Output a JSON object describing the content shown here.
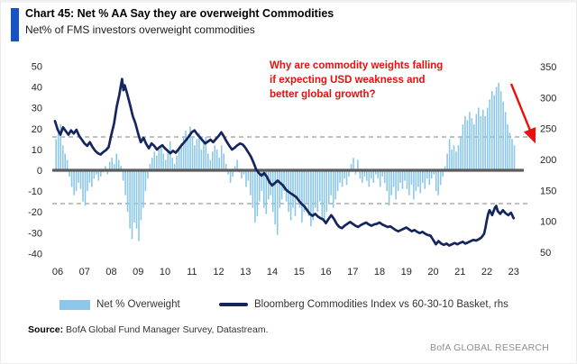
{
  "header": {
    "accent_color": "#1552C4"
  },
  "chart_data": {
    "type": "bar+line",
    "title": "Chart 45: Net % AA Say they are overweight Commodities",
    "subtitle": "Net% of FMS investors overweight commodities",
    "annotation": {
      "text": "Why are commodity weights falling\nif expecting USD weakness and\nbetter global growth?",
      "color": "#E8100C"
    },
    "legend": [
      {
        "label": "Net % Overweight",
        "color": "#8CC7E9",
        "type": "bar"
      },
      {
        "label": "Bloomberg Commodities Index vs 60-30-10 Basket, rhs",
        "color": "#15265E",
        "type": "line"
      }
    ],
    "left_axis": {
      "ticks": [
        50,
        40,
        30,
        20,
        10,
        0,
        -10,
        -20,
        -30,
        -40
      ],
      "range": [
        -40,
        50
      ]
    },
    "right_axis": {
      "ticks": [
        350,
        300,
        250,
        200,
        150,
        100,
        50
      ],
      "range": [
        50,
        350
      ]
    },
    "x_ticks": [
      "06",
      "07",
      "08",
      "09",
      "10",
      "11",
      "12",
      "13",
      "14",
      "15",
      "16",
      "17",
      "18",
      "19",
      "20",
      "21",
      "22",
      "23"
    ],
    "dashed_lines_left": [
      16,
      -16
    ],
    "grid": "horizontal-dashed-only",
    "legend_position": "bottom",
    "bar_color": "#8CC7E9",
    "line_color": "#15265E",
    "arrow_color": "#E8100C",
    "bars": {
      "name": "Net % Overweight",
      "axis": "left",
      "start": "2006-01",
      "frequency": "monthly",
      "values": [
        15,
        20,
        22,
        12,
        8,
        5,
        -3,
        -8,
        -12,
        -10,
        -6,
        -9,
        -15,
        -17,
        -10,
        -6,
        -8,
        -4,
        -2,
        -5,
        -3,
        -1,
        2,
        -2,
        4,
        6,
        3,
        8,
        5,
        2,
        -5,
        -12,
        -20,
        -28,
        -33,
        -25,
        -28,
        -34,
        -24,
        -18,
        -10,
        -4,
        3,
        6,
        9,
        7,
        10,
        12,
        8,
        5,
        10,
        14,
        6,
        3,
        7,
        10,
        13,
        16,
        19,
        15,
        21,
        16,
        12,
        15,
        18,
        10,
        13,
        16,
        8,
        5,
        9,
        12,
        10,
        6,
        12,
        8,
        3,
        -2,
        -6,
        -3,
        2,
        5,
        -1,
        -4,
        -2,
        -8,
        -5,
        -12,
        -18,
        -25,
        -22,
        -15,
        -10,
        -18,
        -21,
        -14,
        -12,
        -20,
        -26,
        -31,
        -18,
        -14,
        -10,
        -15,
        -20,
        -24,
        -18,
        -22,
        -14,
        -18,
        -25,
        -20,
        -16,
        -22,
        -27,
        -24,
        -18,
        -20,
        -15,
        -23,
        -25,
        -20,
        -16,
        -12,
        -18,
        -14,
        -10,
        -6,
        -8,
        -4,
        -7,
        -3,
        3,
        6,
        -2,
        5,
        -4,
        -6,
        -3,
        -5,
        -8,
        -4,
        -6,
        -2,
        -4,
        -8,
        -3,
        -6,
        -10,
        -17,
        -12,
        -8,
        -14,
        -10,
        -6,
        -9,
        -5,
        -9,
        -12,
        -7,
        -14,
        -10,
        -8,
        -11,
        -6,
        -9,
        -4,
        -7,
        -4,
        -2,
        -10,
        -12,
        -7,
        -3,
        2,
        8,
        15,
        10,
        12,
        9,
        12,
        16,
        22,
        26,
        24,
        28,
        25,
        22,
        27,
        30,
        26,
        29,
        26,
        30,
        34,
        38,
        36,
        40,
        42,
        38,
        33,
        28,
        22,
        18,
        15,
        12
      ]
    },
    "line": {
      "name": "Bloomberg Commodities Index vs 60-30-10 Basket, rhs",
      "axis": "right",
      "points": [
        [
          2006.0,
          262
        ],
        [
          2006.1,
          248
        ],
        [
          2006.2,
          240
        ],
        [
          2006.3,
          252
        ],
        [
          2006.4,
          246
        ],
        [
          2006.5,
          240
        ],
        [
          2006.6,
          247
        ],
        [
          2006.7,
          242
        ],
        [
          2006.8,
          248
        ],
        [
          2006.9,
          238
        ],
        [
          2007.0,
          232
        ],
        [
          2007.1,
          226
        ],
        [
          2007.2,
          222
        ],
        [
          2007.3,
          228
        ],
        [
          2007.4,
          220
        ],
        [
          2007.5,
          214
        ],
        [
          2007.6,
          210
        ],
        [
          2007.7,
          208
        ],
        [
          2007.8,
          212
        ],
        [
          2007.9,
          215
        ],
        [
          2008.0,
          220
        ],
        [
          2008.1,
          240
        ],
        [
          2008.2,
          258
        ],
        [
          2008.3,
          285
        ],
        [
          2008.4,
          305
        ],
        [
          2008.45,
          318
        ],
        [
          2008.5,
          330
        ],
        [
          2008.55,
          312
        ],
        [
          2008.6,
          320
        ],
        [
          2008.7,
          305
        ],
        [
          2008.8,
          288
        ],
        [
          2008.9,
          270
        ],
        [
          2009.0,
          258
        ],
        [
          2009.1,
          242
        ],
        [
          2009.2,
          228
        ],
        [
          2009.3,
          235
        ],
        [
          2009.4,
          225
        ],
        [
          2009.5,
          218
        ],
        [
          2009.6,
          226
        ],
        [
          2009.7,
          222
        ],
        [
          2009.8,
          216
        ],
        [
          2009.9,
          220
        ],
        [
          2010.0,
          223
        ],
        [
          2010.1,
          218
        ],
        [
          2010.2,
          214
        ],
        [
          2010.3,
          210
        ],
        [
          2010.4,
          214
        ],
        [
          2010.5,
          211
        ],
        [
          2010.6,
          216
        ],
        [
          2010.7,
          222
        ],
        [
          2010.8,
          227
        ],
        [
          2010.9,
          232
        ],
        [
          2011.0,
          238
        ],
        [
          2011.1,
          244
        ],
        [
          2011.2,
          247
        ],
        [
          2011.3,
          241
        ],
        [
          2011.4,
          236
        ],
        [
          2011.5,
          231
        ],
        [
          2011.6,
          226
        ],
        [
          2011.7,
          229
        ],
        [
          2011.8,
          232
        ],
        [
          2011.9,
          228
        ],
        [
          2012.0,
          233
        ],
        [
          2012.1,
          238
        ],
        [
          2012.2,
          244
        ],
        [
          2012.3,
          237
        ],
        [
          2012.4,
          229
        ],
        [
          2012.5,
          222
        ],
        [
          2012.6,
          216
        ],
        [
          2012.7,
          219
        ],
        [
          2012.8,
          223
        ],
        [
          2012.9,
          226
        ],
        [
          2013.0,
          224
        ],
        [
          2013.1,
          219
        ],
        [
          2013.2,
          212
        ],
        [
          2013.3,
          205
        ],
        [
          2013.4,
          195
        ],
        [
          2013.5,
          184
        ],
        [
          2013.6,
          178
        ],
        [
          2013.7,
          174
        ],
        [
          2013.8,
          178
        ],
        [
          2013.9,
          172
        ],
        [
          2014.0,
          163
        ],
        [
          2014.1,
          158
        ],
        [
          2014.2,
          162
        ],
        [
          2014.3,
          166
        ],
        [
          2014.4,
          162
        ],
        [
          2014.5,
          158
        ],
        [
          2014.6,
          152
        ],
        [
          2014.7,
          148
        ],
        [
          2014.8,
          145
        ],
        [
          2014.9,
          142
        ],
        [
          2015.0,
          139
        ],
        [
          2015.1,
          133
        ],
        [
          2015.2,
          128
        ],
        [
          2015.3,
          124
        ],
        [
          2015.4,
          118
        ],
        [
          2015.5,
          112
        ],
        [
          2015.6,
          109
        ],
        [
          2015.7,
          112
        ],
        [
          2015.8,
          108
        ],
        [
          2015.9,
          105
        ],
        [
          2016.0,
          103
        ],
        [
          2016.1,
          97
        ],
        [
          2016.2,
          104
        ],
        [
          2016.3,
          110
        ],
        [
          2016.4,
          104
        ],
        [
          2016.5,
          96
        ],
        [
          2016.6,
          91
        ],
        [
          2016.7,
          89
        ],
        [
          2016.8,
          93
        ],
        [
          2016.9,
          96
        ],
        [
          2017.0,
          99
        ],
        [
          2017.1,
          96
        ],
        [
          2017.2,
          93
        ],
        [
          2017.3,
          91
        ],
        [
          2017.4,
          94
        ],
        [
          2017.5,
          96
        ],
        [
          2017.6,
          98
        ],
        [
          2017.7,
          95
        ],
        [
          2017.8,
          93
        ],
        [
          2017.9,
          95
        ],
        [
          2018.0,
          96
        ],
        [
          2018.1,
          98
        ],
        [
          2018.2,
          95
        ],
        [
          2018.3,
          93
        ],
        [
          2018.4,
          91
        ],
        [
          2018.5,
          92
        ],
        [
          2018.6,
          89
        ],
        [
          2018.7,
          86
        ],
        [
          2018.8,
          84
        ],
        [
          2018.9,
          86
        ],
        [
          2019.0,
          88
        ],
        [
          2019.1,
          90
        ],
        [
          2019.2,
          87
        ],
        [
          2019.3,
          84
        ],
        [
          2019.4,
          86
        ],
        [
          2019.5,
          83
        ],
        [
          2019.6,
          81
        ],
        [
          2019.7,
          83
        ],
        [
          2019.8,
          80
        ],
        [
          2019.9,
          78
        ],
        [
          2020.0,
          77
        ],
        [
          2020.1,
          70
        ],
        [
          2020.2,
          63
        ],
        [
          2020.3,
          68
        ],
        [
          2020.4,
          64
        ],
        [
          2020.5,
          62
        ],
        [
          2020.6,
          64
        ],
        [
          2020.7,
          61
        ],
        [
          2020.8,
          63
        ],
        [
          2020.9,
          65
        ],
        [
          2021.0,
          63
        ],
        [
          2021.1,
          65
        ],
        [
          2021.2,
          67
        ],
        [
          2021.3,
          64
        ],
        [
          2021.4,
          66
        ],
        [
          2021.5,
          68
        ],
        [
          2021.6,
          70
        ],
        [
          2021.7,
          69
        ],
        [
          2021.8,
          71
        ],
        [
          2021.9,
          74
        ],
        [
          2022.0,
          80
        ],
        [
          2022.05,
          90
        ],
        [
          2022.1,
          102
        ],
        [
          2022.15,
          112
        ],
        [
          2022.2,
          118
        ],
        [
          2022.3,
          110
        ],
        [
          2022.4,
          122
        ],
        [
          2022.45,
          125
        ],
        [
          2022.5,
          117
        ],
        [
          2022.6,
          112
        ],
        [
          2022.7,
          118
        ],
        [
          2022.8,
          113
        ],
        [
          2022.9,
          110
        ],
        [
          2023.0,
          114
        ],
        [
          2023.1,
          105
        ]
      ]
    }
  },
  "source": {
    "label": "Source:",
    "text": "BofA Global Fund Manager Survey, Datastream."
  },
  "footer": {
    "brand": "BofA GLOBAL RESEARCH"
  }
}
